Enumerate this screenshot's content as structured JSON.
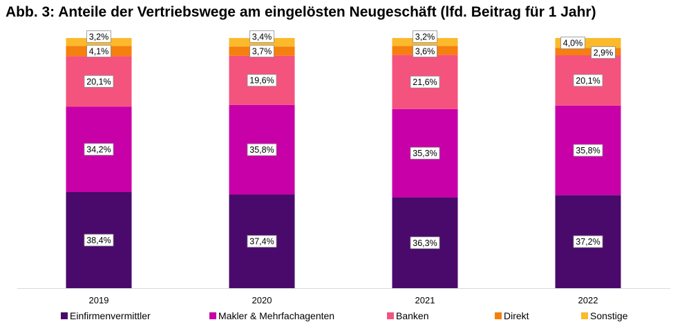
{
  "title": "Abb. 3: Anteile der Vertriebswege am eingelösten Neugeschäft (lfd. Beitrag für 1 Jahr)",
  "chart_data": {
    "type": "bar",
    "stacked": true,
    "percent_stacked": true,
    "categories": [
      "2019",
      "2020",
      "2021",
      "2022"
    ],
    "series": [
      {
        "name": "Einfirmenvermittler",
        "color": "#4a0a6b",
        "values": [
          38.4,
          37.4,
          36.3,
          37.2
        ],
        "labels": [
          "38,4%",
          "37,4%",
          "36,3%",
          "37,2%"
        ]
      },
      {
        "name": "Makler & Mehrfachagenten",
        "color": "#c800a8",
        "values": [
          34.2,
          35.8,
          35.3,
          35.8
        ],
        "labels": [
          "34,2%",
          "35,8%",
          "35,3%",
          "35,8%"
        ]
      },
      {
        "name": "Banken",
        "color": "#f4537e",
        "values": [
          20.1,
          19.6,
          21.6,
          20.1
        ],
        "labels": [
          "20,1%",
          "19,6%",
          "21,6%",
          "20,1%"
        ]
      },
      {
        "name": "Direkt",
        "color": "#f57f0f",
        "values": [
          4.1,
          3.7,
          3.6,
          2.9
        ],
        "labels": [
          "4,1%",
          "3,7%",
          "3,6%",
          "2,9%"
        ]
      },
      {
        "name": "Sonstige",
        "color": "#fbb92c",
        "values": [
          3.2,
          3.4,
          3.2,
          4.0
        ],
        "labels": [
          "3,2%",
          "3,4%",
          "3,2%",
          "4,0%"
        ]
      }
    ],
    "ylim": [
      0,
      100
    ],
    "grid": false,
    "legend_position": "bottom"
  }
}
